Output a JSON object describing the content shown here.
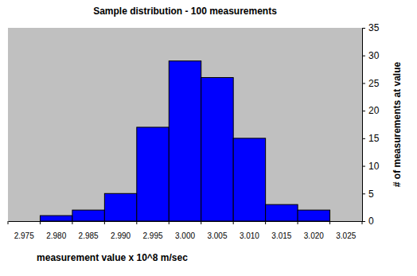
{
  "chart_data": {
    "type": "bar",
    "title": "Sample distribution - 100 measurements",
    "x_label": "measurement value x 10^8 m/sec",
    "y_label": "# of measurements at value",
    "categories": [
      "2.975",
      "2.980",
      "2.985",
      "2.990",
      "2.995",
      "3.000",
      "3.005",
      "3.010",
      "3.015",
      "3.020",
      "3.025"
    ],
    "values": [
      0,
      1,
      2,
      5,
      17,
      29,
      26,
      15,
      3,
      2,
      0
    ],
    "color": "#0000ff",
    "ylim": [
      0,
      35
    ],
    "yticks": [
      0,
      5,
      10,
      15,
      20,
      25,
      30,
      35
    ],
    "grid": false
  }
}
